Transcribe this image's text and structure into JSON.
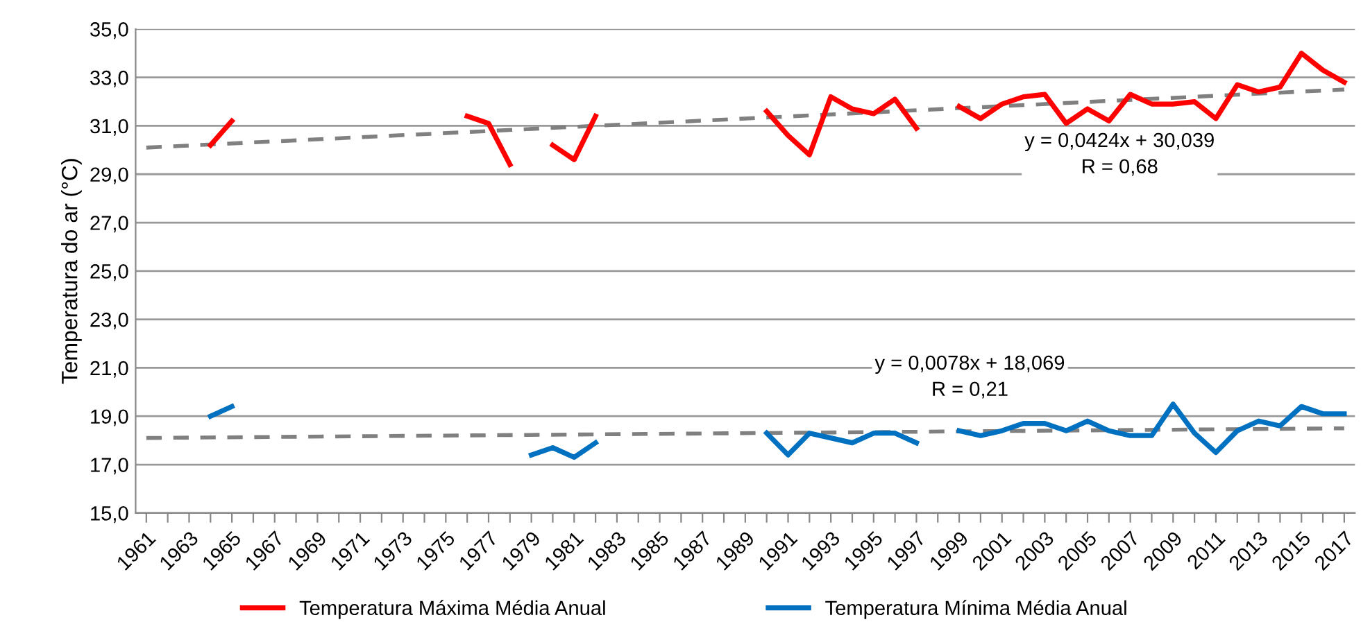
{
  "chart_data": {
    "type": "line",
    "ylabel": "Temperatura do ar (°C)",
    "categories": [
      "1961",
      null,
      "1963",
      null,
      "1965",
      null,
      "1967",
      null,
      "1969",
      null,
      "1971",
      null,
      "1973",
      null,
      "1975",
      null,
      "1977",
      null,
      "1979",
      null,
      "1981",
      null,
      "1983",
      null,
      "1985",
      null,
      "1987",
      null,
      "1989",
      null,
      "1991",
      null,
      "1993",
      null,
      "1995",
      null,
      "1997",
      null,
      "1999",
      null,
      "2001",
      null,
      "2003",
      null,
      "2005",
      null,
      "2007",
      null,
      "2009",
      null,
      "2011",
      null,
      "2013",
      null,
      "2015",
      null,
      "2017"
    ],
    "series": [
      {
        "name": "Temperatura Máxima Média Anual",
        "color": "#ff0000",
        "values": [
          null,
          null,
          null,
          30.2,
          31.2,
          null,
          null,
          null,
          null,
          null,
          null,
          null,
          null,
          null,
          null,
          31.4,
          31.1,
          29.4,
          null,
          30.2,
          29.6,
          31.4,
          null,
          null,
          null,
          null,
          null,
          null,
          null,
          31.6,
          30.6,
          29.8,
          32.2,
          31.7,
          31.5,
          32.1,
          30.9,
          null,
          31.8,
          31.3,
          31.9,
          32.2,
          32.3,
          31.1,
          31.7,
          31.2,
          32.3,
          31.9,
          31.9,
          32.0,
          31.3,
          32.7,
          32.4,
          32.6,
          34.0,
          33.3,
          32.8
        ]
      },
      {
        "name": "Temperatura Mínima Média Anual",
        "color": "#0070c0",
        "values": [
          null,
          null,
          null,
          19.0,
          19.4,
          null,
          null,
          null,
          null,
          null,
          null,
          null,
          null,
          null,
          null,
          null,
          null,
          null,
          17.4,
          17.7,
          17.3,
          17.9,
          null,
          null,
          null,
          null,
          null,
          null,
          null,
          18.3,
          17.4,
          18.3,
          18.1,
          17.9,
          18.3,
          18.3,
          17.9,
          null,
          18.4,
          18.2,
          18.4,
          18.7,
          18.7,
          18.4,
          18.8,
          18.4,
          18.2,
          18.2,
          19.5,
          18.3,
          17.5,
          18.4,
          18.8,
          18.6,
          19.4,
          19.1,
          19.1
        ]
      },
      {
        "type": "line",
        "line_style": "dashed",
        "color": "#808080",
        "values": [
          30.1,
          null,
          null,
          null,
          null,
          null,
          null,
          null,
          null,
          null,
          null,
          null,
          null,
          null,
          null,
          null,
          null,
          null,
          null,
          null,
          null,
          null,
          null,
          null,
          null,
          null,
          null,
          null,
          null,
          null,
          null,
          null,
          null,
          null,
          null,
          null,
          null,
          null,
          null,
          null,
          null,
          null,
          null,
          null,
          null,
          null,
          null,
          null,
          null,
          null,
          null,
          null,
          null,
          null,
          null,
          null,
          32.5
        ]
      },
      {
        "type": "line",
        "line_style": "dashed",
        "color": "#808080",
        "values": [
          18.1,
          null,
          null,
          null,
          null,
          null,
          null,
          null,
          null,
          null,
          null,
          null,
          null,
          null,
          null,
          null,
          null,
          null,
          null,
          null,
          null,
          null,
          null,
          null,
          null,
          null,
          null,
          null,
          null,
          null,
          null,
          null,
          null,
          null,
          null,
          null,
          null,
          null,
          null,
          null,
          null,
          null,
          null,
          null,
          null,
          null,
          null,
          null,
          null,
          null,
          null,
          null,
          null,
          null,
          null,
          null,
          18.5
        ]
      }
    ],
    "ylim": [
      15,
      35
    ],
    "yticks": [
      {
        "value": 15,
        "label": "15,0"
      },
      {
        "value": 17,
        "label": "17,0"
      },
      {
        "value": 19,
        "label": "19,0"
      },
      {
        "value": 21,
        "label": "21,0"
      },
      {
        "value": 23,
        "label": "23,0"
      },
      {
        "value": 25,
        "label": "25,0"
      },
      {
        "value": 27,
        "label": "27,0"
      },
      {
        "value": 29,
        "label": "29,0"
      },
      {
        "value": 31,
        "label": "31,0"
      },
      {
        "value": 33,
        "label": "33,0"
      },
      {
        "value": 35,
        "label": "35,0"
      }
    ],
    "grid": "y",
    "legend": "bottom",
    "marker": "none",
    "line_style": "solid",
    "annotations": [
      "y = 0,0424x + 30,039\nR = 0,68",
      "y = 0,0078x + 18,069\nR = 0,21"
    ]
  }
}
